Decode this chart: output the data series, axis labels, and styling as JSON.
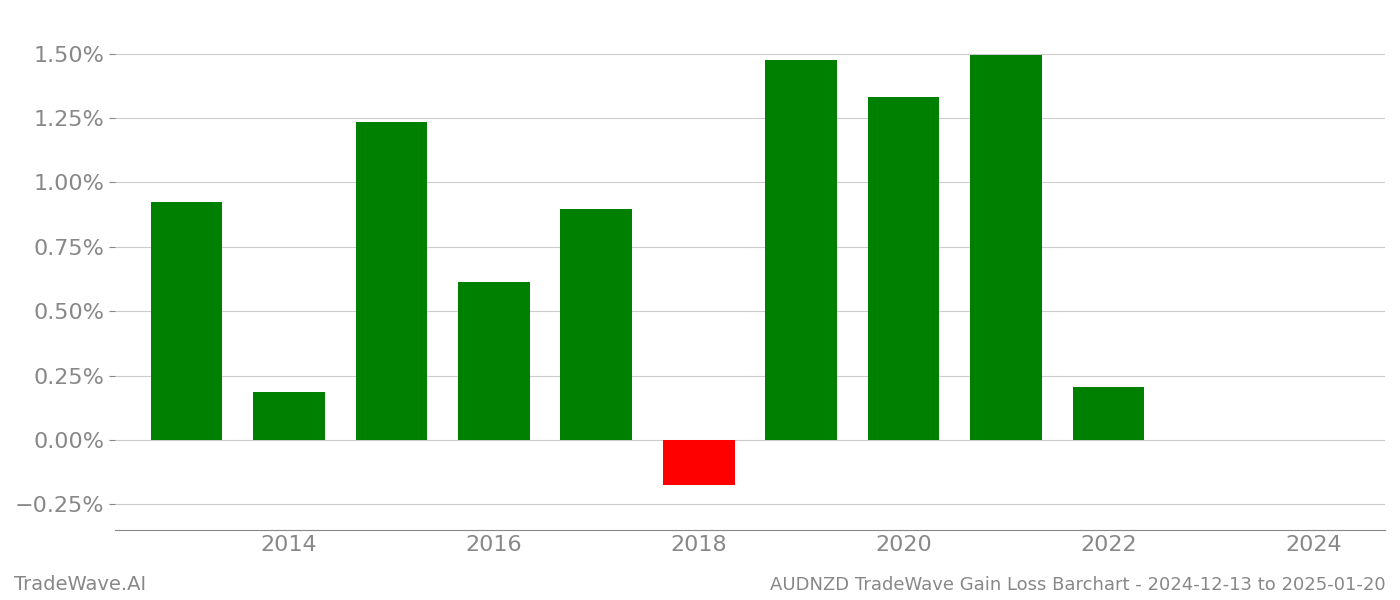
{
  "years": [
    2013,
    2014,
    2015,
    2016,
    2017,
    2018,
    2019,
    2020,
    2021,
    2022,
    2023
  ],
  "values": [
    0.00925,
    0.00185,
    0.01235,
    0.00615,
    0.00895,
    -0.00175,
    0.01475,
    0.0133,
    0.01495,
    0.00205,
    null
  ],
  "bar_colors": [
    "#008000",
    "#008000",
    "#008000",
    "#008000",
    "#008000",
    "#ff0000",
    "#008000",
    "#008000",
    "#008000",
    "#008000",
    null
  ],
  "ylim": [
    -0.0035,
    0.0165
  ],
  "yticks": [
    -0.0025,
    0.0,
    0.0025,
    0.005,
    0.0075,
    0.01,
    0.0125,
    0.015
  ],
  "ytick_labels": [
    "-0.25%",
    "0.00%",
    "0.25%",
    "0.50%",
    "0.75%",
    "1.00%",
    "1.25%",
    "1.50%"
  ],
  "xticks": [
    2014,
    2016,
    2018,
    2020,
    2022,
    2024
  ],
  "xlim": [
    2012.3,
    2024.7
  ],
  "title": "AUDNZD TradeWave Gain Loss Barchart - 2024-12-13 to 2025-01-20",
  "watermark": "TradeWave.AI",
  "background_color": "#ffffff",
  "grid_color": "#cccccc",
  "tick_color": "#888888",
  "bar_width": 0.7
}
